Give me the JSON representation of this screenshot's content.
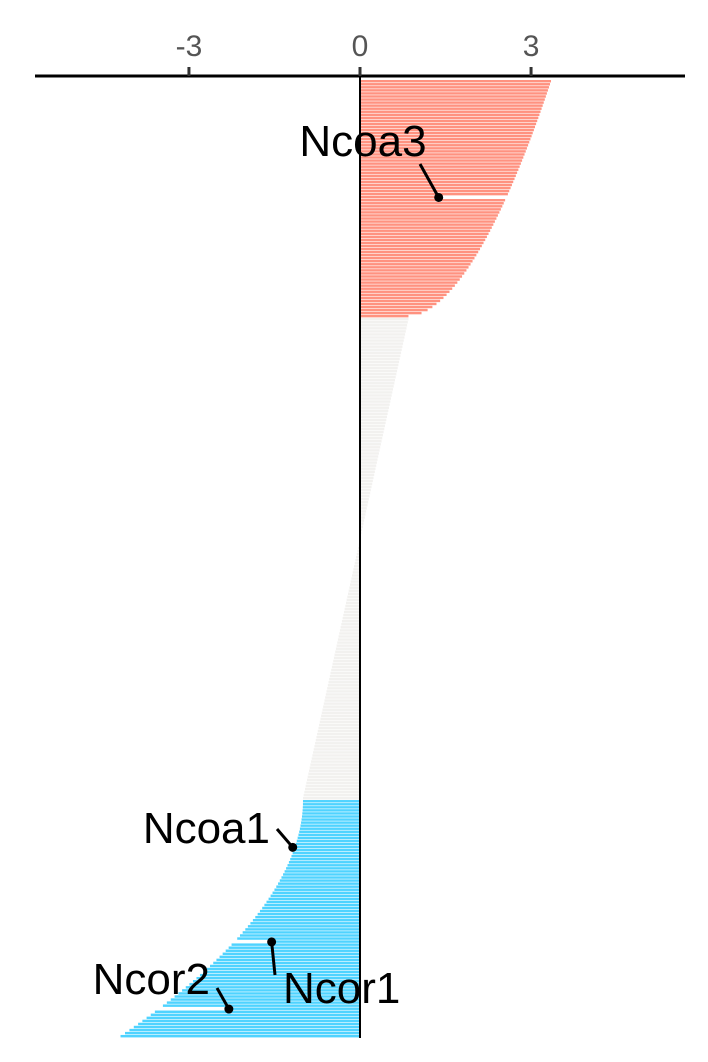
{
  "chart_data": {
    "type": "bar",
    "orientation": "horizontal",
    "xlim": [
      -5.7,
      5.7
    ],
    "x_ticks": [
      -3,
      0,
      3
    ],
    "x_tick_labels": [
      "-3",
      "0",
      "3"
    ],
    "axis_position": "top",
    "grid": false,
    "legend": "none",
    "colors": {
      "up": "#FF9280",
      "neutral": "#F2F1EF",
      "down": "#4FD3FF",
      "axis": "#000000",
      "tick_label": "#555555"
    },
    "groups": [
      {
        "name": "up",
        "count": 78,
        "values_from": 3.35,
        "values_to": 0.85
      },
      {
        "name": "neutral",
        "count": 158,
        "values_from": 0.85,
        "values_to": -1.0
      },
      {
        "name": "down",
        "count": 78,
        "values_from": -1.0,
        "values_to": -4.2
      }
    ],
    "highlighted": [
      {
        "label": "Ncoa3",
        "rank": 38,
        "value": 1.38
      },
      {
        "label": "Ncoa1",
        "rank": 251,
        "value": -1.18
      },
      {
        "label": "Ncor1",
        "rank": 282,
        "value": -1.55
      },
      {
        "label": "Ncor2",
        "rank": 304,
        "value": -2.3
      }
    ]
  }
}
